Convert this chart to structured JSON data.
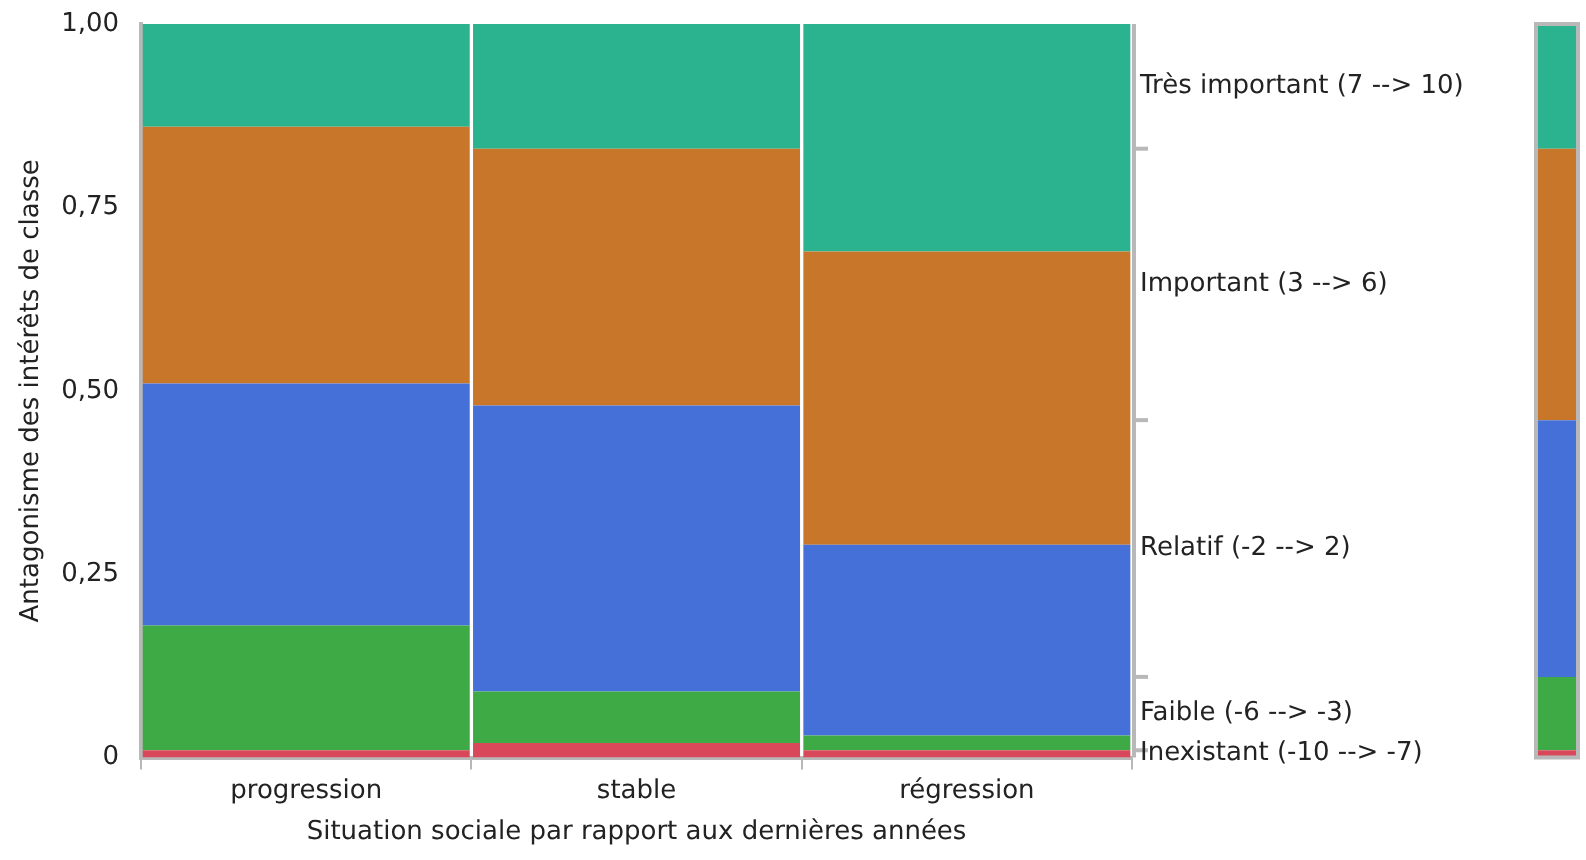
{
  "chart_data": [
    {
      "type": "bar",
      "stacked": true,
      "xlabel": "Situation sociale par rapport aux dernières années",
      "ylabel": "Antagonisme des intérêts de classe",
      "categories": [
        "progression",
        "stable",
        "régression"
      ],
      "ylim": [
        0,
        1
      ],
      "yticks": [
        0,
        {
          "value": 0.25,
          "label": "0,25"
        },
        {
          "value": 0.5,
          "label": "0,50"
        },
        {
          "value": 0.75,
          "label": "0,75"
        },
        {
          "value": 1,
          "label": "1,00"
        }
      ],
      "legend": "right",
      "series": [
        {
          "name": "Inexistant (-10 --> -7)",
          "color": "#d8485a",
          "values": [
            0.01,
            0.02,
            0.01
          ]
        },
        {
          "name": "Faible (-6 --> -3)",
          "color": "#3daa45",
          "values": [
            0.17,
            0.07,
            0.02
          ]
        },
        {
          "name": "Relatif (-2 --> 2)",
          "color": "#4470d8",
          "values": [
            0.33,
            0.39,
            0.26
          ]
        },
        {
          "name": "Important (3 --> 6)",
          "color": "#c8772a",
          "values": [
            0.35,
            0.35,
            0.4
          ]
        },
        {
          "name": "Très important (7 --> 10)",
          "color": "#2bb38f",
          "values": [
            0.14,
            0.17,
            0.31
          ]
        }
      ]
    },
    {
      "type": "bar",
      "stacked": true,
      "categories": [
        null
      ],
      "ylim": [
        0,
        1
      ],
      "tick_labels": false,
      "series": [
        {
          "color": "#d8485a",
          "values": [
            0.01
          ]
        },
        {
          "color": "#3daa45",
          "values": [
            0.1
          ]
        },
        {
          "color": "#4470d8",
          "values": [
            0.35
          ]
        },
        {
          "color": "#c8772a",
          "values": [
            0.37
          ]
        },
        {
          "color": "#2bb38f",
          "values": [
            0.17
          ]
        }
      ]
    }
  ]
}
